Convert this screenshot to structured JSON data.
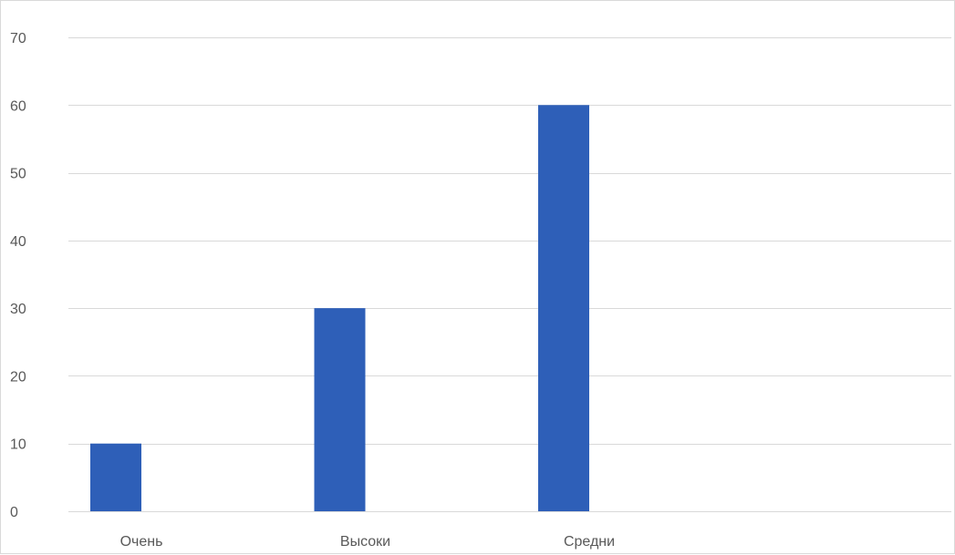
{
  "chart_data": {
    "type": "bar",
    "title": "",
    "xlabel": "",
    "ylabel": "",
    "categories": [
      "Очень",
      "Высоки",
      "Средни",
      ""
    ],
    "values": [
      10,
      30,
      60,
      null
    ],
    "ylim": [
      0,
      70
    ],
    "yticks": [
      0,
      10,
      20,
      30,
      40,
      50,
      60,
      70
    ],
    "grid": true,
    "legend": "none",
    "colors": {
      "bar": "#2e5fb8",
      "grid": "#d9d9d9",
      "axis": "#d9d9d9",
      "text": "#595959"
    }
  }
}
